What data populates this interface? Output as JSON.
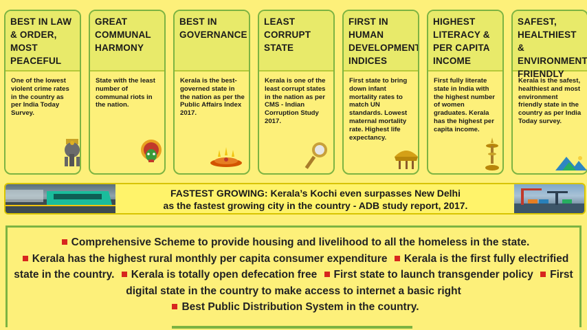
{
  "cards": [
    {
      "title": "BEST IN LAW & ORDER, MOST PEACEFUL",
      "body": "One of the lowest violent crime rates in the country as per India Today Survey.",
      "icon": "elephant-icon"
    },
    {
      "title": "GREAT COMMUNAL HARMONY",
      "body": "State with the least number of communal riots in the nation.",
      "icon": "kathakali-mask-icon"
    },
    {
      "title": "BEST IN GOVERNANCE",
      "body": "Kerala is the best-governed state in the nation as per the Public Affairs Index 2017.",
      "icon": "oil-lamp-offering-icon"
    },
    {
      "title": "LEAST CORRUPT STATE",
      "body": "Kerala is one of the least corrupt states in the nation as per CMS - Indian Corruption Study 2017.",
      "icon": "aranmula-mirror-icon"
    },
    {
      "title": "FIRST IN HUMAN DEVELOPMENT INDICES",
      "body": "First state to bring down infant mortality rates to match UN standards. Lowest maternal mortality rate. Highest life expectancy.",
      "icon": "ceremonial-umbrella-icon"
    },
    {
      "title": "HIGHEST LITERACY & PER CAPITA INCOME",
      "body": "First fully literate state in India with the highest number of women graduates. Kerala has the highest per capita income.",
      "icon": "brass-lamp-icon"
    },
    {
      "title": "SAFEST, HEALTHIEST & ENVIRONMENT FRIENDLY",
      "body": "Kerala is the safest, healthiest and most environment friendly state in the country as per India Today survey.",
      "icon": "mountain-landscape-icon"
    }
  ],
  "banner": {
    "line1": "FASTEST GROWING: Kerala’s Kochi even surpasses New Delhi",
    "line2": "as the fastest growing city in the country - ADB study report, 2017."
  },
  "bullets": [
    "Comprehensive Scheme to provide housing and livelihood to all the homeless in the state.",
    "Kerala has the highest rural monthly per capita consumer expenditure",
    "Kerala is the first fully electrified state in the country.",
    "Kerala is totally open defecation free",
    "First state to launch transgender policy",
    "First digital state in the country to make access to internet a basic right",
    "Best Public Distribution System in the country."
  ],
  "colors": {
    "background": "#fdf07a",
    "card_border": "#7cb342",
    "bullet": "#d7261e"
  }
}
